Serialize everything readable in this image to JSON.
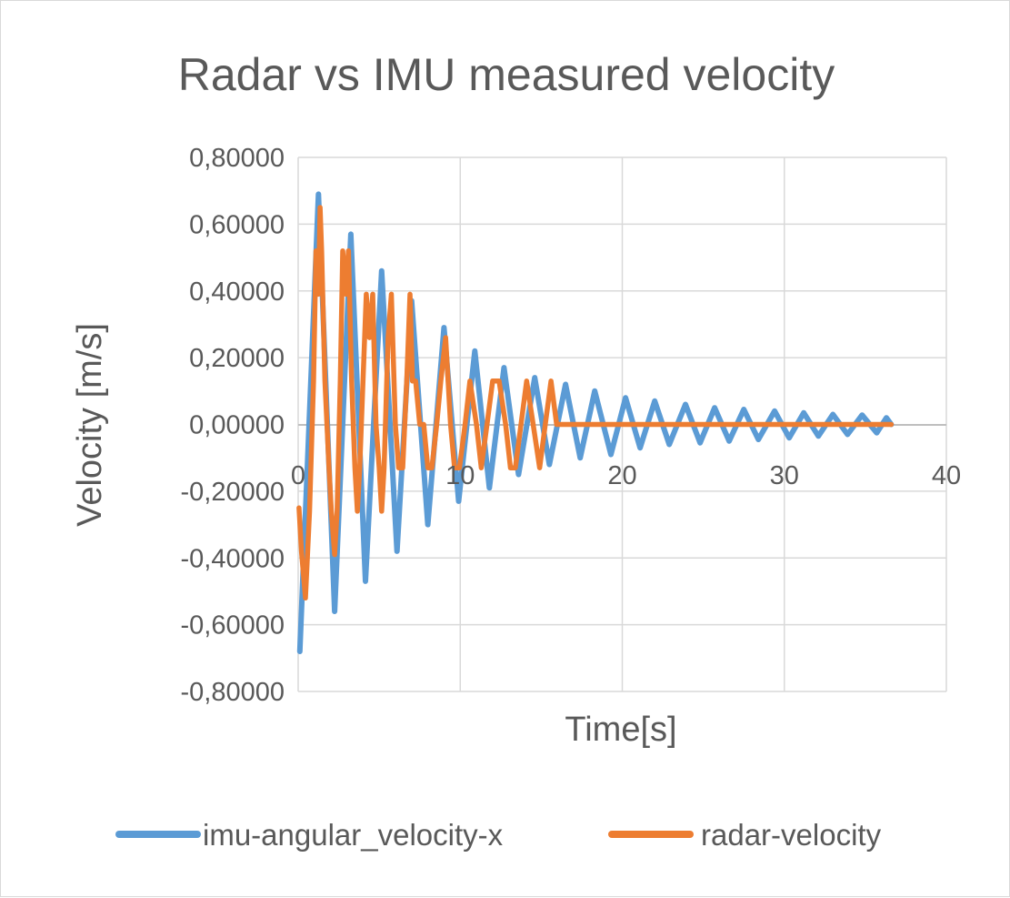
{
  "chart_data": {
    "type": "line",
    "title": "Radar vs IMU measured velocity",
    "xlabel": "Time[s]",
    "ylabel": "Velocity [m/s]",
    "xlim": [
      0,
      40
    ],
    "ylim": [
      -0.8,
      0.8
    ],
    "x_ticks": [
      0,
      10,
      20,
      30,
      40
    ],
    "x_tick_labels": [
      "0",
      "10",
      "20",
      "30",
      "40"
    ],
    "y_ticks": [
      0.8,
      0.6,
      0.4,
      0.2,
      0.0,
      -0.2,
      -0.4,
      -0.6,
      -0.8
    ],
    "y_tick_labels": [
      "0,80000",
      "0,60000",
      "0,40000",
      "0,20000",
      "0,00000",
      "-0,20000",
      "-0,40000",
      "-0,60000",
      "-0,80000"
    ],
    "grid": true,
    "legend_position": "bottom",
    "series": [
      {
        "name": "imu-angular_velocity-x",
        "color": "#5b9bd5",
        "x": [
          0.1,
          1.25,
          2.25,
          3.25,
          4.15,
          5.15,
          6.1,
          7.0,
          8.0,
          9.0,
          9.9,
          10.9,
          11.8,
          12.7,
          13.6,
          14.6,
          15.5,
          16.5,
          17.4,
          18.3,
          19.3,
          20.2,
          21.1,
          22.0,
          22.9,
          23.9,
          24.8,
          25.7,
          26.6,
          27.5,
          28.4,
          29.4,
          30.3,
          31.2,
          32.1,
          33.0,
          33.9,
          34.8,
          35.7,
          36.3,
          36.6
        ],
        "y": [
          -0.68,
          0.69,
          -0.56,
          0.57,
          -0.47,
          0.46,
          -0.38,
          0.37,
          -0.3,
          0.29,
          -0.23,
          0.22,
          -0.19,
          0.17,
          -0.15,
          0.14,
          -0.12,
          0.12,
          -0.1,
          0.1,
          -0.09,
          0.08,
          -0.07,
          0.07,
          -0.06,
          0.06,
          -0.055,
          0.05,
          -0.05,
          0.045,
          -0.045,
          0.04,
          -0.04,
          0.035,
          -0.035,
          0.03,
          -0.03,
          0.028,
          -0.025,
          0.02,
          0.0
        ]
      },
      {
        "name": "radar-velocity",
        "color": "#ed7d31",
        "x": [
          0.05,
          0.2,
          0.45,
          0.7,
          0.95,
          1.1,
          1.25,
          1.35,
          1.45,
          1.65,
          1.9,
          2.05,
          2.25,
          2.4,
          2.6,
          2.75,
          2.95,
          3.1,
          3.3,
          3.5,
          3.65,
          3.8,
          4.0,
          4.2,
          4.4,
          4.6,
          4.8,
          5.0,
          5.15,
          5.3,
          5.55,
          5.75,
          6.0,
          6.2,
          6.45,
          6.7,
          6.9,
          7.05,
          7.25,
          7.5,
          7.75,
          8.0,
          8.25,
          8.55,
          8.8,
          9.1,
          9.4,
          9.65,
          9.95,
          10.3,
          10.6,
          11.0,
          11.3,
          11.65,
          12.0,
          12.4,
          12.8,
          13.1,
          13.4,
          13.75,
          14.1,
          14.5,
          14.9,
          15.25,
          15.6,
          15.95,
          16.3,
          17.0,
          20.0,
          25.0,
          30.0,
          35.0,
          36.6
        ],
        "y": [
          -0.25,
          -0.38,
          -0.52,
          -0.26,
          0.13,
          0.52,
          0.39,
          0.65,
          0.52,
          0.13,
          -0.13,
          -0.26,
          -0.39,
          -0.26,
          0.13,
          0.52,
          0.39,
          0.52,
          0.13,
          -0.13,
          -0.26,
          -0.13,
          0.13,
          0.39,
          0.26,
          0.39,
          0.0,
          -0.13,
          -0.26,
          -0.13,
          0.26,
          0.39,
          0.0,
          -0.13,
          -0.13,
          0.13,
          0.39,
          0.13,
          0.13,
          0.0,
          0.0,
          -0.13,
          -0.13,
          0.0,
          0.13,
          0.26,
          0.0,
          -0.13,
          -0.13,
          0.0,
          0.13,
          0.0,
          -0.13,
          0.0,
          0.13,
          0.13,
          0.0,
          -0.13,
          -0.13,
          0.0,
          0.13,
          0.0,
          -0.13,
          0.0,
          0.13,
          0.0,
          0.0,
          0.0,
          0.0,
          0.0,
          0.0,
          0.0,
          0.0
        ]
      }
    ]
  }
}
